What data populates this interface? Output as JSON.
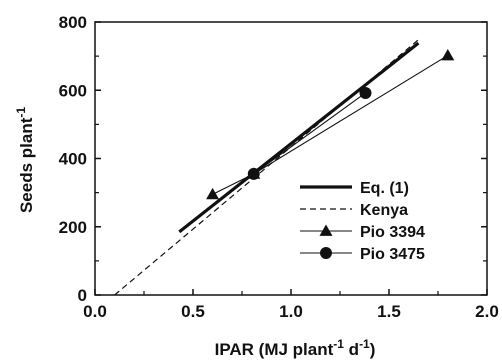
{
  "chart_data": {
    "type": "scatter",
    "title": "",
    "xlabel": {
      "main": "IPAR (MJ plant",
      "exp1": "-1",
      "mid": " d",
      "exp2": "-1",
      "end": ")"
    },
    "ylabel": {
      "main": "Seeds plant",
      "exp": "-1"
    },
    "xlim": [
      0.0,
      2.0
    ],
    "ylim": [
      0,
      800
    ],
    "xticks": [
      0.0,
      0.5,
      1.0,
      1.5,
      2.0
    ],
    "xtick_labels": [
      "0.0",
      "0.5",
      "1.0",
      "1.5",
      "2.0"
    ],
    "yticks": [
      0,
      200,
      400,
      600,
      800
    ],
    "ytick_labels": [
      "0",
      "200",
      "400",
      "600",
      "800"
    ],
    "grid": false,
    "legend_position": "lower-right",
    "series": [
      {
        "name": "Eq. (1)",
        "kind": "line",
        "style": "thick-solid",
        "color": "#111111",
        "x": [
          0.43,
          1.65
        ],
        "y": [
          185,
          738
        ]
      },
      {
        "name": "Kenya",
        "kind": "line",
        "style": "dashed",
        "color": "#111111",
        "x": [
          0.1,
          1.65
        ],
        "y": [
          0,
          748
        ]
      },
      {
        "name": "Pio 3394",
        "kind": "line+marker",
        "style": "thin-solid",
        "marker": "triangle",
        "color": "#111111",
        "x": [
          0.6,
          0.81,
          1.8
        ],
        "y": [
          295,
          355,
          702
        ]
      },
      {
        "name": "Pio 3475",
        "kind": "line+marker",
        "style": "thin-solid",
        "marker": "circle",
        "color": "#111111",
        "x": [
          0.81,
          1.38
        ],
        "y": [
          355,
          592
        ]
      }
    ]
  }
}
